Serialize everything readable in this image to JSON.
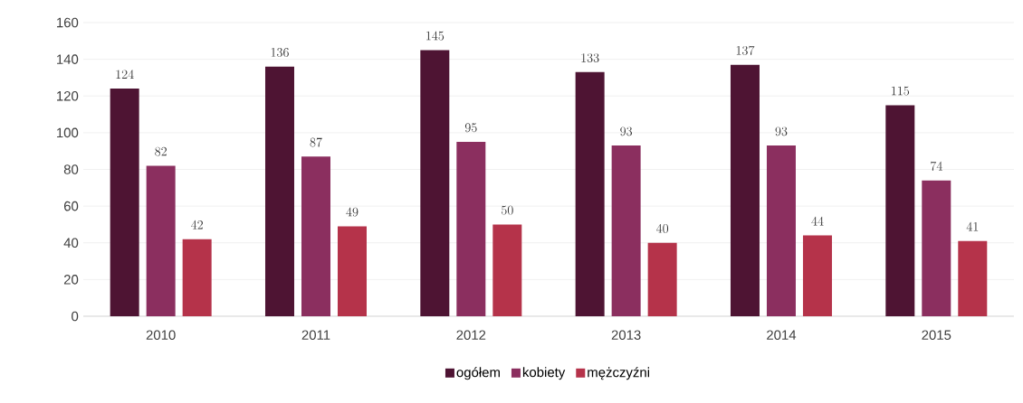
{
  "chart_data": {
    "type": "bar",
    "categories": [
      "2010",
      "2011",
      "2012",
      "2013",
      "2014",
      "2015"
    ],
    "series": [
      {
        "name": "ogółem",
        "color": "#4e1433",
        "values": [
          124,
          136,
          145,
          133,
          137,
          115
        ]
      },
      {
        "name": "kobiety",
        "color": "#8b2f5f",
        "values": [
          82,
          87,
          95,
          93,
          93,
          74
        ]
      },
      {
        "name": "mężczyźni",
        "color": "#b5334a",
        "values": [
          42,
          49,
          50,
          40,
          44,
          41
        ]
      }
    ],
    "ylim": [
      0,
      160
    ],
    "yticks": [
      0,
      20,
      40,
      60,
      80,
      100,
      120,
      140,
      160
    ],
    "grid": "y",
    "legend": "bottom",
    "data_labels": true
  }
}
